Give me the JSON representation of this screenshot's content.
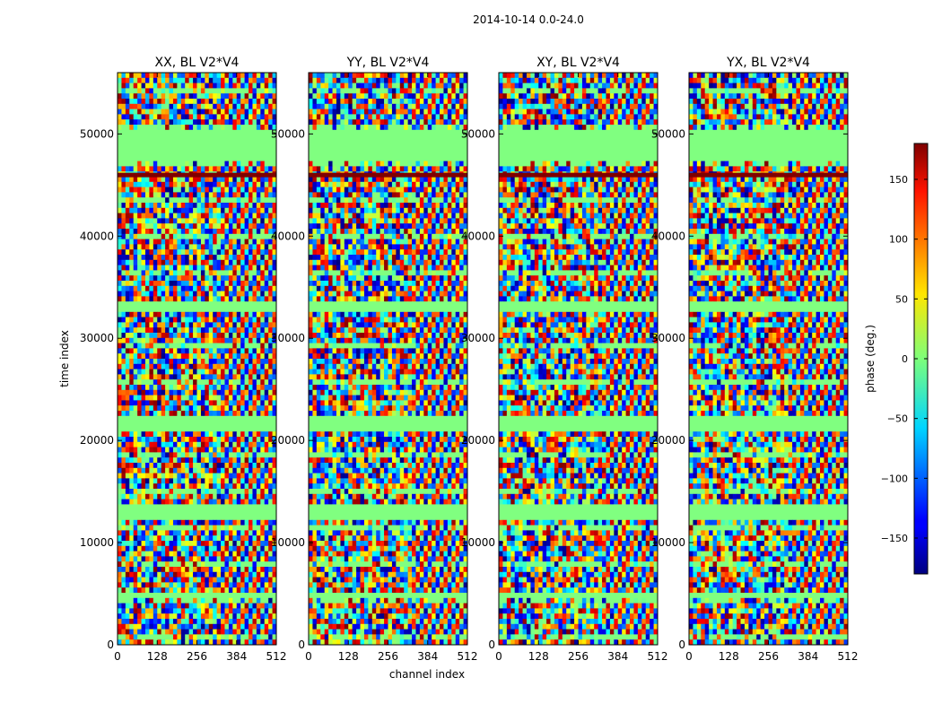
{
  "chart_data": {
    "type": "heatmap",
    "title": "2014-10-14 0.0-24.0",
    "xlabel": "channel index",
    "ylabel": "time index",
    "xlim": [
      0,
      512
    ],
    "ylim": [
      0,
      56000
    ],
    "xticks": [
      0,
      128,
      256,
      384,
      512
    ],
    "yticks": [
      0,
      10000,
      20000,
      30000,
      40000,
      50000
    ],
    "panels": [
      {
        "title": "XX, BL V2*V4",
        "polarization": "XX"
      },
      {
        "title": "YY, BL V2*V4",
        "polarization": "YY"
      },
      {
        "title": "XY, BL V2*V4",
        "polarization": "XY"
      },
      {
        "title": "YX, BL V2*V4",
        "polarization": "YX"
      }
    ],
    "colorbar": {
      "label": "phase (deg.)",
      "range": [
        -180,
        180
      ],
      "ticks": [
        -150,
        -100,
        -50,
        0,
        50,
        100,
        150
      ],
      "colormap": "jet"
    },
    "flagged_bands": [
      {
        "from": 4500,
        "to": 5200
      },
      {
        "from": 12300,
        "to": 13600
      },
      {
        "from": 21000,
        "to": 22500
      },
      {
        "from": 32700,
        "to": 33700
      },
      {
        "from": 47500,
        "to": 50500
      }
    ]
  }
}
